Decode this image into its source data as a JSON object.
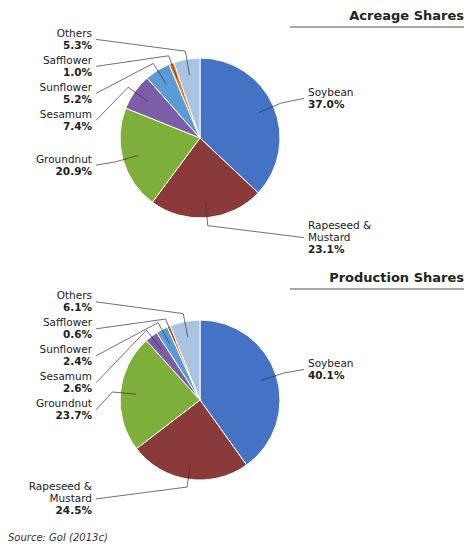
{
  "chart_data": [
    {
      "type": "pie",
      "title": "Acreage Shares",
      "categories": [
        "Soybean",
        "Rapeseed &\nMustard",
        "Groundnut",
        "Sesamum",
        "Sunflower",
        "Safflower",
        "Others"
      ],
      "values": [
        37.0,
        23.1,
        20.9,
        7.4,
        5.2,
        1.0,
        5.3
      ],
      "value_labels": [
        "37.0%",
        "23.1%",
        "20.9%",
        "7.4%",
        "5.2%",
        "1.0%",
        "5.3%"
      ],
      "colors": [
        "#4472C4",
        "#8B3A3A",
        "#7DAF3A",
        "#7B5EA7",
        "#5B9BD5",
        "#E87722",
        "#A8C4E0"
      ],
      "data_labels": true
    },
    {
      "type": "pie",
      "title": "Production Shares",
      "categories": [
        "Soybean",
        "Rapeseed &\nMustard",
        "Groundnut",
        "Sesamum",
        "Sunflower",
        "Safflower",
        "Others"
      ],
      "values": [
        40.1,
        24.5,
        23.7,
        2.6,
        2.4,
        0.6,
        6.1
      ],
      "value_labels": [
        "40.1%",
        "24.5%",
        "23.7%",
        "2.6%",
        "2.4%",
        "0.6%",
        "6.1%"
      ],
      "colors": [
        "#4472C4",
        "#8B3A3A",
        "#7DAF3A",
        "#7B5EA7",
        "#5B9BD5",
        "#E87722",
        "#A8C4E0"
      ],
      "data_labels": true,
      "annotations": [
        "Source: GoI (2013c)"
      ]
    }
  ]
}
